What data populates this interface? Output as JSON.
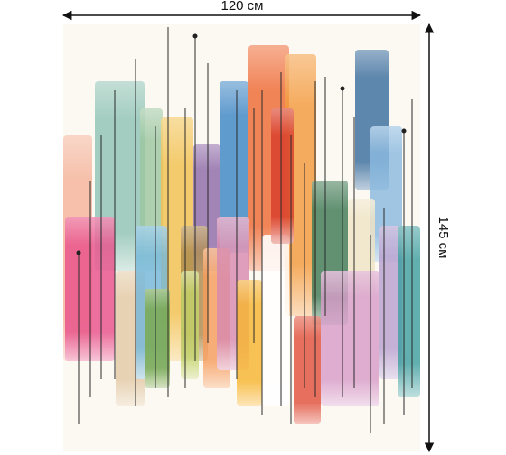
{
  "width_label": "120 см",
  "height_label": "145 см"
}
